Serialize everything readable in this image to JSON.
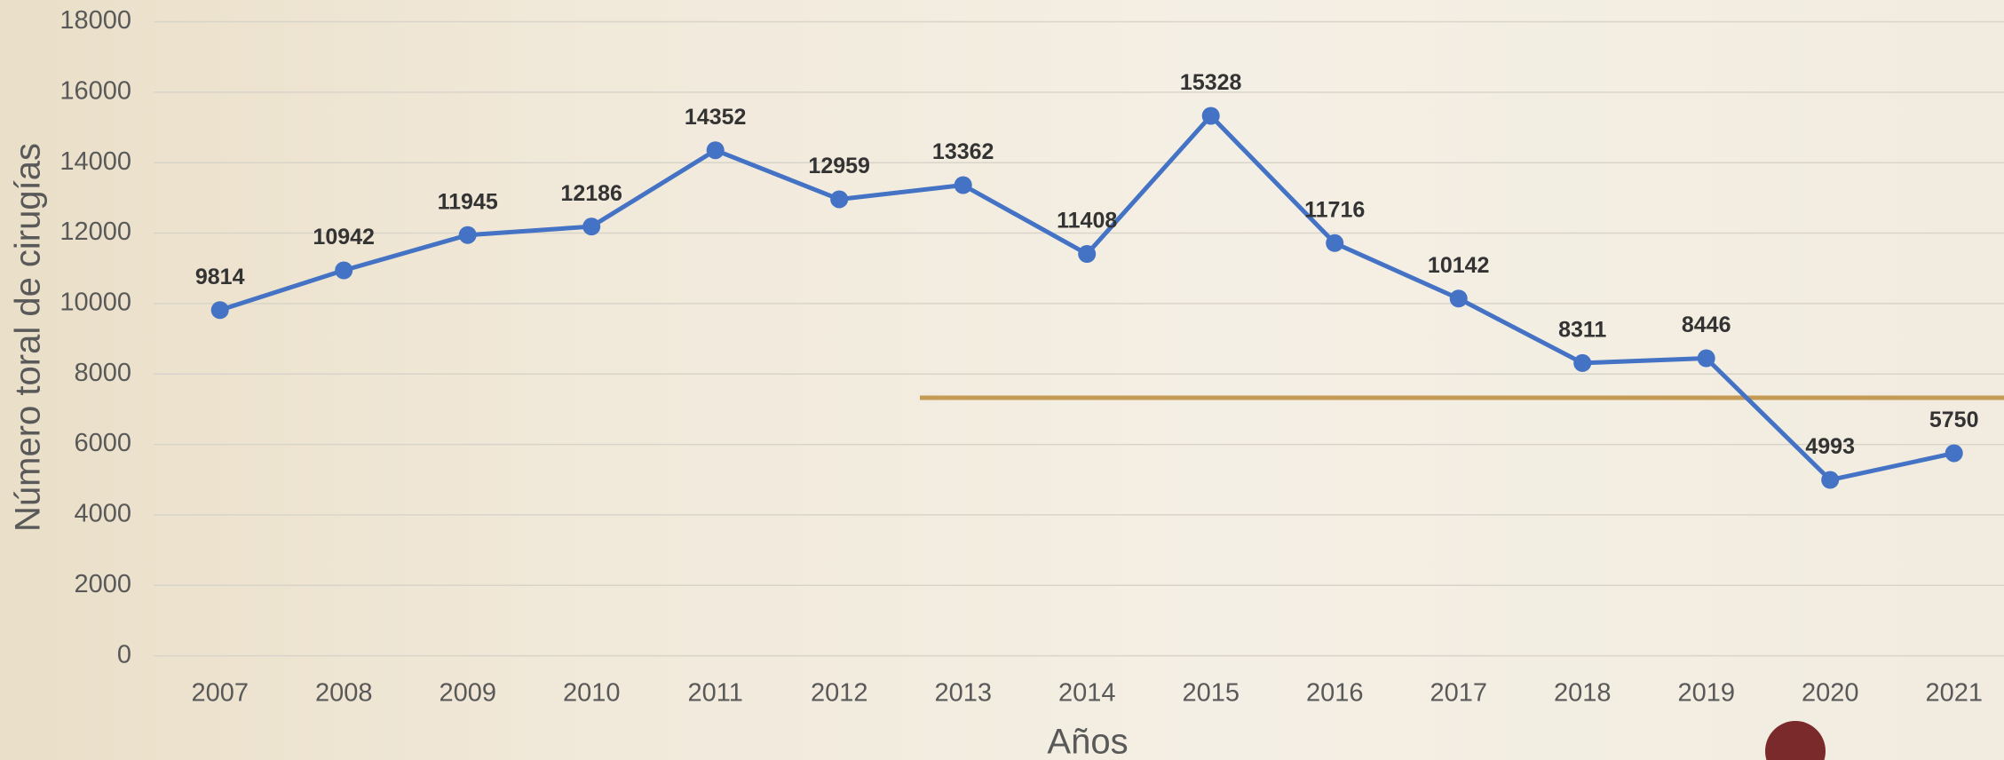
{
  "chart_data": {
    "type": "line",
    "x_label": "Años",
    "y_label": "Número toral de cirugías",
    "categories": [
      "2007",
      "2008",
      "2009",
      "2010",
      "2011",
      "2012",
      "2013",
      "2014",
      "2015",
      "2016",
      "2017",
      "2018",
      "2019",
      "2020",
      "2021"
    ],
    "values": [
      9814,
      10942,
      11945,
      12186,
      14352,
      12959,
      13362,
      11408,
      15328,
      11716,
      10142,
      8311,
      8446,
      4993,
      5750
    ],
    "color": "#4472c4",
    "ylim": [
      0,
      18000
    ],
    "yticks": [
      0,
      2000,
      4000,
      6000,
      8000,
      10000,
      12000,
      14000,
      16000,
      18000
    ],
    "grid": true
  }
}
